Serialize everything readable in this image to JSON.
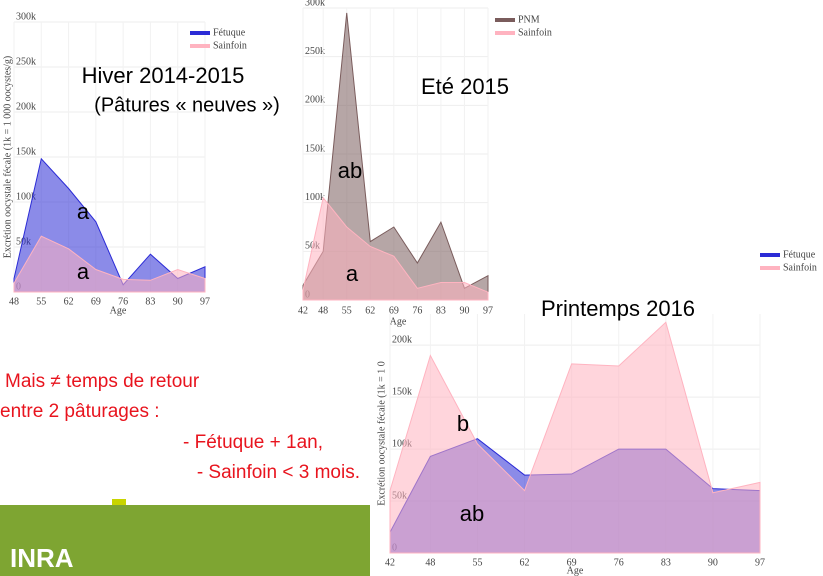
{
  "chart_data": [
    {
      "type": "area",
      "title": "Hiver 2014-2015",
      "subtitle": "(Pâtures « neuves »)",
      "y_label": "Excrétion oocystale fécale (1k = 1 000 oocystes/g)",
      "x_label": "Age",
      "x": [
        48,
        55,
        62,
        69,
        76,
        83,
        90,
        97
      ],
      "xlim": [
        48,
        97
      ],
      "xticks": [
        48,
        55,
        62,
        69,
        76,
        83,
        90,
        97
      ],
      "ylim": [
        0,
        300000
      ],
      "yticks": [
        0,
        {
          "value": 50000,
          "label": "50k"
        },
        {
          "value": 100000,
          "label": "100k"
        },
        {
          "value": 150000,
          "label": "150k"
        },
        {
          "value": 200000,
          "label": "200k"
        },
        {
          "value": 250000,
          "label": "250k"
        },
        {
          "value": 300000,
          "label": "300k"
        }
      ],
      "grid": true,
      "series": [
        {
          "name": "Fétuque",
          "color": "#2b2bd6",
          "values": [
            15000,
            148000,
            115000,
            78000,
            8000,
            42000,
            15000,
            28000
          ]
        },
        {
          "name": "Sainfoin",
          "color": "#ffb3c0",
          "values": [
            10000,
            62000,
            48000,
            25000,
            14000,
            13000,
            25000,
            15000
          ]
        }
      ],
      "annotations": [
        "a",
        "a"
      ]
    },
    {
      "type": "area",
      "title": "Eté 2015",
      "x_label": "Age",
      "x": [
        42,
        48,
        55,
        62,
        69,
        76,
        83,
        90,
        97
      ],
      "xlim": [
        42,
        97
      ],
      "xticks": [
        42,
        48,
        55,
        62,
        69,
        76,
        83,
        90,
        97
      ],
      "ylim": [
        0,
        300000
      ],
      "yticks": [
        0,
        {
          "value": 50000,
          "label": "50k"
        },
        {
          "value": 100000,
          "label": "100k"
        },
        {
          "value": 150000,
          "label": "150k"
        },
        {
          "value": 200000,
          "label": "200k"
        },
        {
          "value": 250000,
          "label": "250k"
        },
        {
          "value": 300000,
          "label": "300k"
        }
      ],
      "grid": true,
      "series": [
        {
          "name": "PNM",
          "color": "#7a5c5c",
          "values": [
            15000,
            50000,
            295000,
            60000,
            75000,
            38000,
            80000,
            12000,
            25000
          ]
        },
        {
          "name": "Sainfoin",
          "color": "#ffb3c0",
          "values": [
            10000,
            105000,
            75000,
            55000,
            45000,
            12000,
            18000,
            18000,
            8000
          ]
        }
      ],
      "annotations": [
        "ab",
        "a"
      ]
    },
    {
      "type": "area",
      "title": "Printemps 2016",
      "y_label": "Excrétion oocystale fécale (1k = 1 0",
      "x_label": "Age",
      "x": [
        42,
        48,
        55,
        62,
        69,
        76,
        83,
        90,
        97
      ],
      "xlim": [
        42,
        97
      ],
      "xticks": [
        42,
        48,
        55,
        62,
        69,
        76,
        83,
        90,
        97
      ],
      "ylim": [
        0,
        230000
      ],
      "yticks": [
        0,
        {
          "value": 50000,
          "label": "50k"
        },
        {
          "value": 100000,
          "label": "100k"
        },
        {
          "value": 150000,
          "label": "150k"
        },
        {
          "value": 200000,
          "label": "200k"
        }
      ],
      "grid": true,
      "series": [
        {
          "name": "Fétuque",
          "color": "#2b2bd6",
          "values": [
            20000,
            93000,
            110000,
            75000,
            76000,
            100000,
            100000,
            62000,
            60000
          ]
        },
        {
          "name": "Sainfoin",
          "color": "#ffb3c0",
          "values": [
            60000,
            190000,
            105000,
            60000,
            182000,
            180000,
            222000,
            58000,
            68000
          ]
        }
      ],
      "annotations": [
        "b",
        "ab"
      ]
    }
  ],
  "note": [
    "Mais ≠ temps de retour",
    "entre 2 pâturages :",
    "- Fétuque + 1an,",
    "- Sainfoin < 3 mois."
  ],
  "logo": "INRA"
}
